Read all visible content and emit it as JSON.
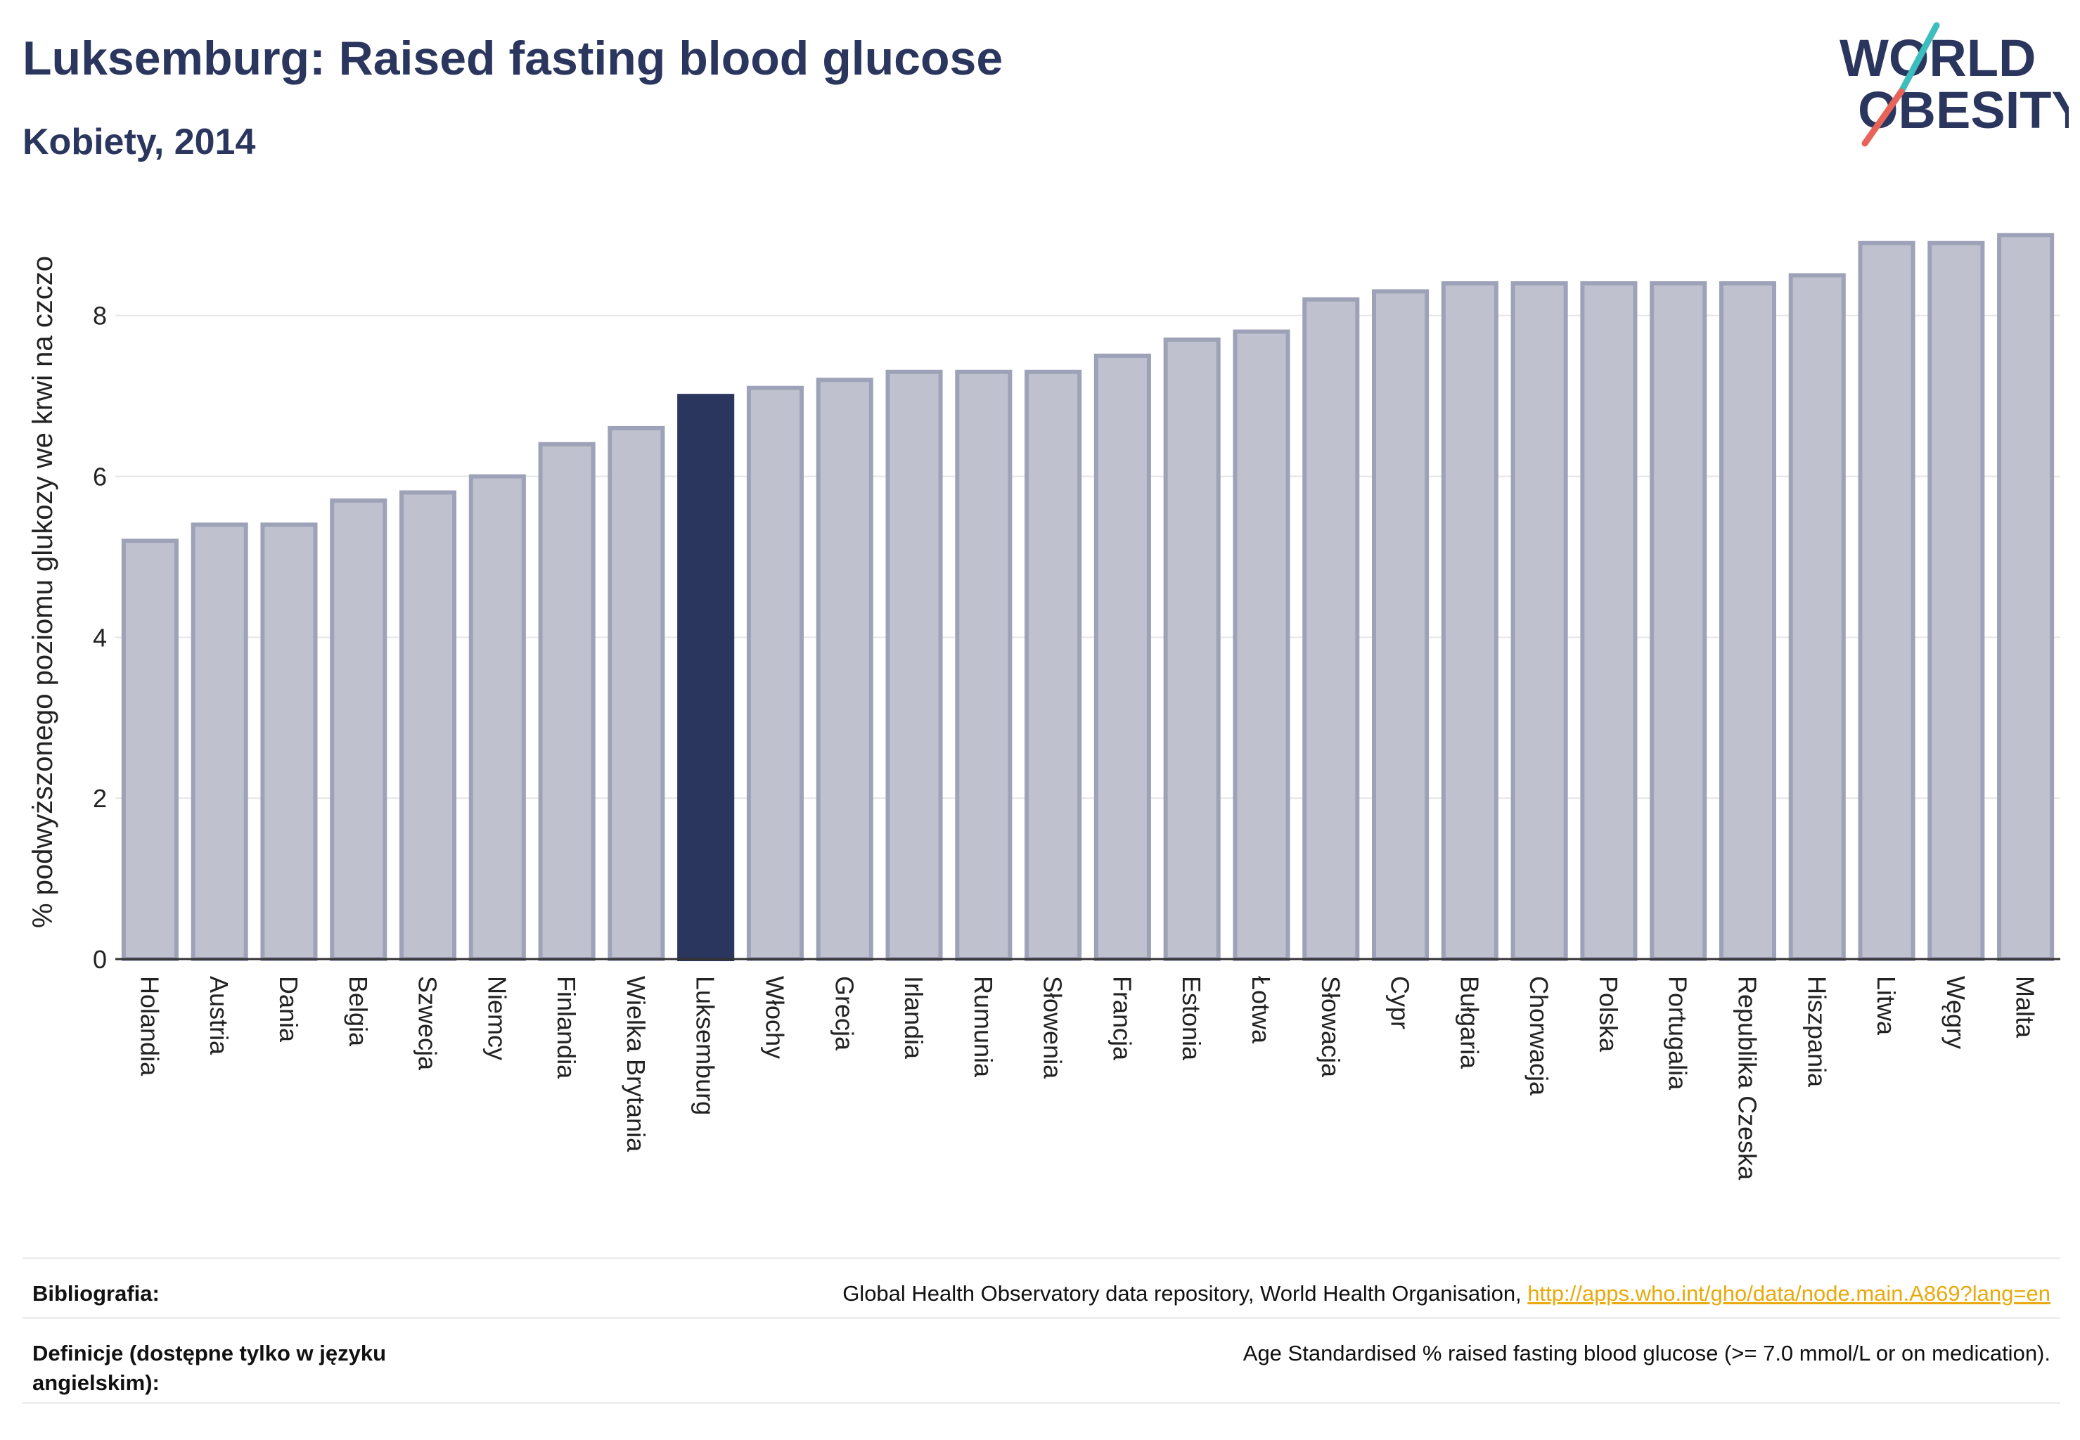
{
  "header": {
    "title": "Luksemburg: Raised fasting blood glucose",
    "subtitle": "Kobiety, 2014"
  },
  "logo": {
    "line1": "WORLD",
    "line2": "OBESITY",
    "colors": {
      "text": "#2b365e",
      "slash_top": "#3dbdbd",
      "slash_bottom": "#e8645a"
    }
  },
  "chart_data": {
    "type": "bar",
    "ylabel": "% podwyższonego poziomu glukozy we krwi na czczo",
    "xlabel": "",
    "ylim": [
      0,
      9.3
    ],
    "yticks": [
      0,
      2,
      4,
      6,
      8
    ],
    "grid": true,
    "highlight": "Luksemburg",
    "colors": {
      "bar": "#bfc2ce",
      "bar_edge": "#9ea2b8",
      "highlight": "#2b365e"
    },
    "categories": [
      "Holandia",
      "Austria",
      "Dania",
      "Belgia",
      "Szwecja",
      "Niemcy",
      "Finlandia",
      "Wielka Brytania",
      "Luksemburg",
      "Włochy",
      "Grecja",
      "Irlandia",
      "Rumunia",
      "Słowenia",
      "Francja",
      "Estonia",
      "Łotwa",
      "Słowacja",
      "Cypr",
      "Bułgaria",
      "Chorwacja",
      "Polska",
      "Portugalia",
      "Republika Czeska",
      "Hiszpania",
      "Litwa",
      "Węgry",
      "Malta"
    ],
    "values": [
      5.2,
      5.4,
      5.4,
      5.7,
      5.8,
      6.0,
      6.4,
      6.6,
      7.0,
      7.1,
      7.2,
      7.3,
      7.3,
      7.3,
      7.5,
      7.7,
      7.8,
      8.2,
      8.3,
      8.4,
      8.4,
      8.4,
      8.4,
      8.4,
      8.5,
      8.9,
      8.9,
      9.0
    ]
  },
  "footer": {
    "bibliography_label": "Bibliografia:",
    "bibliography_text": "Global Health Observatory data repository, World Health Organisation, ",
    "bibliography_link": "http://apps.who.int/gho/data/node.main.A869?lang=en",
    "definitions_label": "Definicje (dostępne tylko w języku angielskim):",
    "definitions_text": "Age Standardised % raised fasting blood glucose (>= 7.0 mmol/L or on medication)."
  }
}
